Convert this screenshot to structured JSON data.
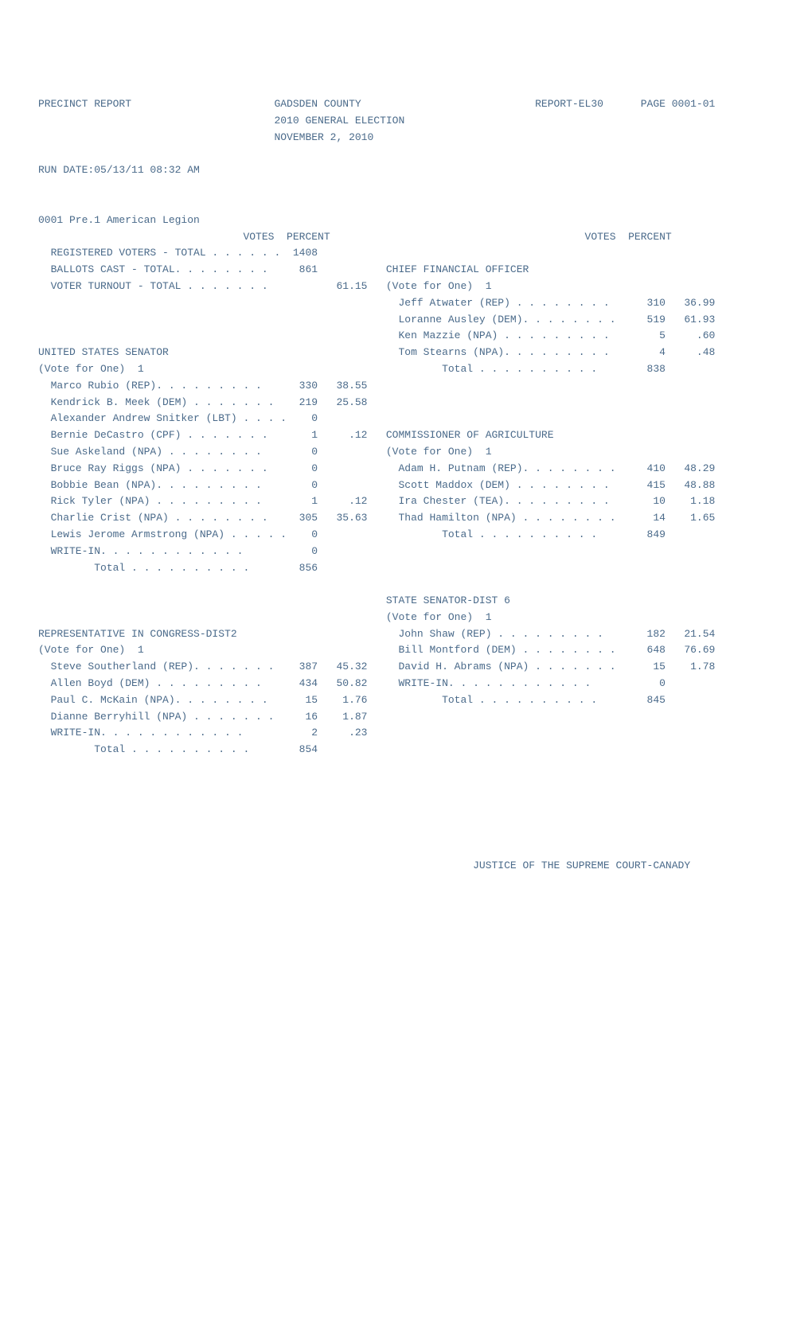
{
  "header": {
    "left": "PRECINCT REPORT",
    "center_line1": "GADSDEN COUNTY",
    "center_line2": "2010 GENERAL ELECTION",
    "center_line3": "NOVEMBER 2, 2010",
    "right": "REPORT-EL30      PAGE 0001-01"
  },
  "run_date": "RUN DATE:05/13/11 08:32 AM",
  "precinct_title": "0001 Pre.1 American Legion",
  "col_header": "VOTES  PERCENT",
  "registration": {
    "registered_label": "REGISTERED VOTERS - TOTAL . . . . . .",
    "registered_votes": "1408",
    "ballots_label": "BALLOTS CAST - TOTAL. . . . . . . .",
    "ballots_votes": "861",
    "turnout_label": "VOTER TURNOUT - TOTAL . . . . . . .",
    "turnout_pct": "61.15"
  },
  "senator": {
    "title": "UNITED STATES SENATOR",
    "vote_for": "(Vote for One)  1",
    "rows": [
      {
        "label": "Marco Rubio (REP). . . . . . . . .",
        "votes": "330",
        "pct": "38.55"
      },
      {
        "label": "Kendrick B. Meek (DEM) . . . . . . .",
        "votes": "219",
        "pct": "25.58"
      },
      {
        "label": "Alexander Andrew Snitker (LBT) . . . .",
        "votes": "0",
        "pct": ""
      },
      {
        "label": "Bernie DeCastro (CPF) . . . . . . .",
        "votes": "1",
        "pct": ".12"
      },
      {
        "label": "Sue Askeland (NPA) . . . . . . . .",
        "votes": "0",
        "pct": ""
      },
      {
        "label": "Bruce Ray Riggs (NPA) . . . . . . .",
        "votes": "0",
        "pct": ""
      },
      {
        "label": "Bobbie Bean (NPA). . . . . . . . .",
        "votes": "0",
        "pct": ""
      },
      {
        "label": "Rick Tyler (NPA) . . . . . . . . .",
        "votes": "1",
        "pct": ".12"
      },
      {
        "label": "Charlie Crist (NPA) . . . . . . . .",
        "votes": "305",
        "pct": "35.63"
      },
      {
        "label": "Lewis Jerome Armstrong (NPA) . . . . .",
        "votes": "0",
        "pct": ""
      },
      {
        "label": "WRITE-IN. . . . . . . . . . . .",
        "votes": "0",
        "pct": ""
      },
      {
        "label": "       Total . . . . . . . . . .",
        "votes": "856",
        "pct": ""
      }
    ]
  },
  "rep": {
    "title": "REPRESENTATIVE IN CONGRESS-DIST2",
    "vote_for": "(Vote for One)  1",
    "rows": [
      {
        "label": "Steve Southerland (REP). . . . . . .",
        "votes": "387",
        "pct": "45.32"
      },
      {
        "label": "Allen Boyd (DEM) . . . . . . . . .",
        "votes": "434",
        "pct": "50.82"
      },
      {
        "label": "Paul C. McKain (NPA). . . . . . . .",
        "votes": "15",
        "pct": "1.76"
      },
      {
        "label": "Dianne Berryhill (NPA) . . . . . . .",
        "votes": "16",
        "pct": "1.87"
      },
      {
        "label": "WRITE-IN. . . . . . . . . . . .",
        "votes": "2",
        "pct": ".23"
      },
      {
        "label": "       Total . . . . . . . . . .",
        "votes": "854",
        "pct": ""
      }
    ]
  },
  "cfo": {
    "title": "CHIEF FINANCIAL OFFICER",
    "vote_for": "(Vote for One)  1",
    "rows": [
      {
        "label": "Jeff Atwater (REP) . . . . . . . .",
        "votes": "310",
        "pct": "36.99"
      },
      {
        "label": "Loranne Ausley (DEM). . . . . . . .",
        "votes": "519",
        "pct": "61.93"
      },
      {
        "label": "Ken Mazzie (NPA) . . . . . . . . .",
        "votes": "5",
        "pct": ".60"
      },
      {
        "label": "Tom Stearns (NPA). . . . . . . . .",
        "votes": "4",
        "pct": ".48"
      },
      {
        "label": "       Total . . . . . . . . . .",
        "votes": "838",
        "pct": ""
      }
    ]
  },
  "ag": {
    "title": "COMMISSIONER OF AGRICULTURE",
    "vote_for": "(Vote for One)  1",
    "rows": [
      {
        "label": "Adam H. Putnam (REP). . . . . . . .",
        "votes": "410",
        "pct": "48.29"
      },
      {
        "label": "Scott Maddox (DEM) . . . . . . . .",
        "votes": "415",
        "pct": "48.88"
      },
      {
        "label": "Ira Chester (TEA). . . . . . . . .",
        "votes": "10",
        "pct": "1.18"
      },
      {
        "label": "Thad Hamilton (NPA) . . . . . . . .",
        "votes": "14",
        "pct": "1.65"
      },
      {
        "label": "       Total . . . . . . . . . .",
        "votes": "849",
        "pct": ""
      }
    ]
  },
  "state_sen": {
    "title": "STATE SENATOR-DIST 6",
    "vote_for": "(Vote for One)  1",
    "rows": [
      {
        "label": "John Shaw (REP) . . . . . . . . .",
        "votes": "182",
        "pct": "21.54"
      },
      {
        "label": "Bill Montford (DEM) . . . . . . . .",
        "votes": "648",
        "pct": "76.69"
      },
      {
        "label": "David H. Abrams (NPA) . . . . . . .",
        "votes": "15",
        "pct": "1.78"
      },
      {
        "label": "WRITE-IN. . . . . . . . . . . .",
        "votes": "0",
        "pct": ""
      },
      {
        "label": "       Total . . . . . . . . . .",
        "votes": "845",
        "pct": ""
      }
    ]
  },
  "footer": "JUSTICE OF THE SUPREME COURT-CANADY"
}
